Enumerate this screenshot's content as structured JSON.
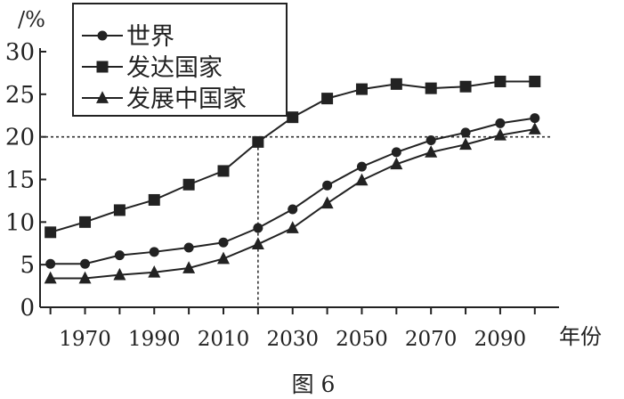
{
  "chart_data": {
    "type": "line",
    "ylabel": "/%",
    "xlabel": "年份",
    "caption": "图 6",
    "ylim": [
      0,
      30
    ],
    "yticks": [
      0,
      5,
      10,
      15,
      20,
      25,
      30
    ],
    "xlim": [
      1957,
      2107
    ],
    "xticks": [
      "1970",
      "1990",
      "2010",
      "2030",
      "2050",
      "2070",
      "2090"
    ],
    "x": [
      1960,
      1970,
      1980,
      1990,
      2000,
      2010,
      2020,
      2030,
      2040,
      2050,
      2060,
      2070,
      2080,
      2090,
      2100
    ],
    "series": [
      {
        "name": "世界",
        "marker": "circle",
        "values": [
          5.1,
          5.1,
          6.1,
          6.5,
          7.0,
          7.6,
          9.3,
          11.5,
          14.3,
          16.5,
          18.2,
          19.6,
          20.5,
          21.6,
          22.2
        ]
      },
      {
        "name": "发达国家",
        "marker": "square",
        "values": [
          8.8,
          10.0,
          11.4,
          12.6,
          14.4,
          16.0,
          19.4,
          22.3,
          24.5,
          25.6,
          26.2,
          25.7,
          25.9,
          26.5,
          26.5
        ]
      },
      {
        "name": "发展中国家",
        "marker": "triangle",
        "values": [
          3.4,
          3.4,
          3.8,
          4.1,
          4.6,
          5.7,
          7.4,
          9.3,
          12.2,
          14.9,
          16.8,
          18.2,
          19.1,
          20.2,
          20.9
        ]
      }
    ],
    "reference": {
      "x": 2020,
      "y": 20
    },
    "legend": "top-left",
    "grid": false
  }
}
